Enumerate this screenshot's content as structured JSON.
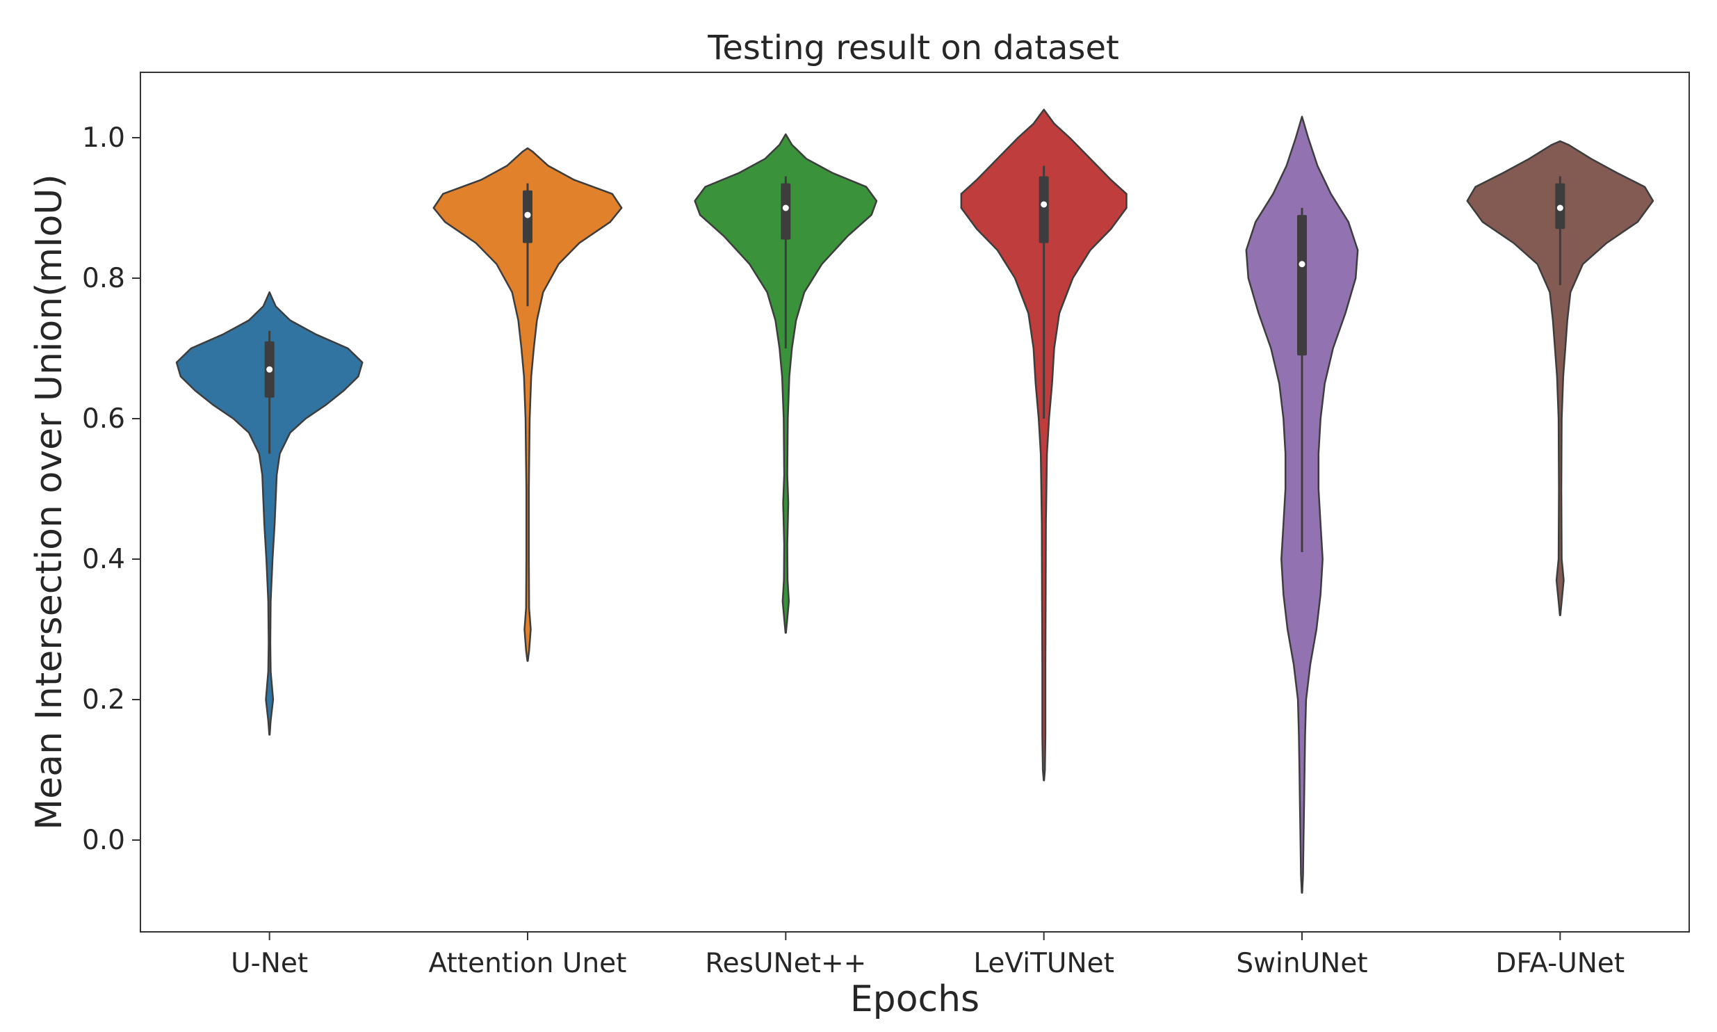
{
  "chart_data": {
    "type": "violin",
    "title": "Testing result on dataset",
    "xlabel": "Epochs",
    "ylabel": "Mean Intersection over Union(mIoU)",
    "ylim": [
      -0.13,
      1.1
    ],
    "yticks": [
      "0.0",
      "0.2",
      "0.4",
      "0.6",
      "0.8",
      "1.0"
    ],
    "ytick_values": [
      0.0,
      0.2,
      0.4,
      0.6,
      0.8,
      1.0
    ],
    "grid": false,
    "categories": [
      "U-Net",
      "Attention Unet",
      "ResUNet++",
      "LeViTUNet",
      "SwinUNet",
      "DFA-UNet"
    ],
    "colors": [
      "#3274a1",
      "#e1812c",
      "#3a923a",
      "#c03d3e",
      "#9372b2",
      "#845b53"
    ],
    "violins": [
      {
        "name": "U-Net",
        "min": 0.15,
        "q1": 0.63,
        "median": 0.67,
        "q3": 0.71,
        "max": 0.78,
        "whisker_low": 0.55,
        "whisker_high": 0.725,
        "profile": [
          [
            0.15,
            0.002
          ],
          [
            0.17,
            0.012
          ],
          [
            0.2,
            0.035
          ],
          [
            0.24,
            0.012
          ],
          [
            0.28,
            0.008
          ],
          [
            0.34,
            0.012
          ],
          [
            0.4,
            0.03
          ],
          [
            0.45,
            0.05
          ],
          [
            0.52,
            0.07
          ],
          [
            0.55,
            0.1
          ],
          [
            0.58,
            0.2
          ],
          [
            0.6,
            0.35
          ],
          [
            0.62,
            0.55
          ],
          [
            0.64,
            0.72
          ],
          [
            0.66,
            0.86
          ],
          [
            0.68,
            0.9
          ],
          [
            0.7,
            0.76
          ],
          [
            0.72,
            0.45
          ],
          [
            0.74,
            0.2
          ],
          [
            0.76,
            0.06
          ],
          [
            0.78,
            0.0
          ]
        ]
      },
      {
        "name": "Attention Unet",
        "min": 0.255,
        "q1": 0.85,
        "median": 0.89,
        "q3": 0.925,
        "max": 0.985,
        "whisker_low": 0.76,
        "whisker_high": 0.935,
        "profile": [
          [
            0.255,
            0.002
          ],
          [
            0.27,
            0.015
          ],
          [
            0.3,
            0.03
          ],
          [
            0.33,
            0.015
          ],
          [
            0.4,
            0.012
          ],
          [
            0.5,
            0.012
          ],
          [
            0.6,
            0.02
          ],
          [
            0.66,
            0.035
          ],
          [
            0.7,
            0.06
          ],
          [
            0.74,
            0.09
          ],
          [
            0.78,
            0.15
          ],
          [
            0.82,
            0.3
          ],
          [
            0.85,
            0.5
          ],
          [
            0.88,
            0.8
          ],
          [
            0.9,
            0.91
          ],
          [
            0.92,
            0.82
          ],
          [
            0.94,
            0.45
          ],
          [
            0.96,
            0.2
          ],
          [
            0.98,
            0.05
          ],
          [
            0.985,
            0.0
          ]
        ]
      },
      {
        "name": "ResUNet++",
        "min": 0.295,
        "q1": 0.855,
        "median": 0.9,
        "q3": 0.935,
        "max": 1.005,
        "whisker_low": 0.7,
        "whisker_high": 0.945,
        "profile": [
          [
            0.295,
            0.002
          ],
          [
            0.31,
            0.012
          ],
          [
            0.34,
            0.03
          ],
          [
            0.37,
            0.018
          ],
          [
            0.42,
            0.015
          ],
          [
            0.48,
            0.025
          ],
          [
            0.52,
            0.015
          ],
          [
            0.6,
            0.02
          ],
          [
            0.66,
            0.035
          ],
          [
            0.7,
            0.06
          ],
          [
            0.74,
            0.1
          ],
          [
            0.78,
            0.18
          ],
          [
            0.82,
            0.35
          ],
          [
            0.86,
            0.6
          ],
          [
            0.89,
            0.83
          ],
          [
            0.91,
            0.88
          ],
          [
            0.93,
            0.78
          ],
          [
            0.95,
            0.45
          ],
          [
            0.97,
            0.2
          ],
          [
            0.99,
            0.06
          ],
          [
            1.005,
            0.0
          ]
        ]
      },
      {
        "name": "LeViTUNet",
        "min": 0.085,
        "q1": 0.85,
        "median": 0.905,
        "q3": 0.945,
        "max": 1.04,
        "whisker_low": 0.6,
        "whisker_high": 0.96,
        "profile": [
          [
            0.085,
            0.002
          ],
          [
            0.1,
            0.01
          ],
          [
            0.15,
            0.015
          ],
          [
            0.25,
            0.015
          ],
          [
            0.35,
            0.018
          ],
          [
            0.45,
            0.02
          ],
          [
            0.55,
            0.03
          ],
          [
            0.6,
            0.05
          ],
          [
            0.65,
            0.08
          ],
          [
            0.7,
            0.1
          ],
          [
            0.75,
            0.15
          ],
          [
            0.8,
            0.28
          ],
          [
            0.84,
            0.45
          ],
          [
            0.87,
            0.65
          ],
          [
            0.9,
            0.8
          ],
          [
            0.92,
            0.8
          ],
          [
            0.94,
            0.65
          ],
          [
            0.97,
            0.45
          ],
          [
            1.0,
            0.25
          ],
          [
            1.02,
            0.1
          ],
          [
            1.04,
            0.0
          ]
        ]
      },
      {
        "name": "SwinUNet",
        "min": -0.075,
        "q1": 0.69,
        "median": 0.82,
        "q3": 0.89,
        "max": 1.03,
        "whisker_low": 0.41,
        "whisker_high": 0.9,
        "profile": [
          [
            -0.075,
            0.002
          ],
          [
            -0.05,
            0.01
          ],
          [
            0.0,
            0.015
          ],
          [
            0.05,
            0.02
          ],
          [
            0.1,
            0.025
          ],
          [
            0.15,
            0.03
          ],
          [
            0.2,
            0.04
          ],
          [
            0.25,
            0.08
          ],
          [
            0.3,
            0.14
          ],
          [
            0.35,
            0.18
          ],
          [
            0.4,
            0.2
          ],
          [
            0.45,
            0.18
          ],
          [
            0.5,
            0.16
          ],
          [
            0.55,
            0.16
          ],
          [
            0.6,
            0.18
          ],
          [
            0.65,
            0.22
          ],
          [
            0.7,
            0.3
          ],
          [
            0.75,
            0.42
          ],
          [
            0.8,
            0.52
          ],
          [
            0.84,
            0.54
          ],
          [
            0.88,
            0.45
          ],
          [
            0.92,
            0.28
          ],
          [
            0.96,
            0.15
          ],
          [
            1.0,
            0.06
          ],
          [
            1.03,
            0.0
          ]
        ]
      },
      {
        "name": "DFA-UNet",
        "min": 0.32,
        "q1": 0.87,
        "median": 0.9,
        "q3": 0.935,
        "max": 0.995,
        "whisker_low": 0.79,
        "whisker_high": 0.945,
        "profile": [
          [
            0.32,
            0.002
          ],
          [
            0.34,
            0.015
          ],
          [
            0.37,
            0.035
          ],
          [
            0.4,
            0.015
          ],
          [
            0.5,
            0.012
          ],
          [
            0.6,
            0.015
          ],
          [
            0.66,
            0.03
          ],
          [
            0.7,
            0.05
          ],
          [
            0.74,
            0.07
          ],
          [
            0.78,
            0.1
          ],
          [
            0.82,
            0.22
          ],
          [
            0.85,
            0.45
          ],
          [
            0.88,
            0.75
          ],
          [
            0.91,
            0.9
          ],
          [
            0.93,
            0.82
          ],
          [
            0.95,
            0.55
          ],
          [
            0.97,
            0.3
          ],
          [
            0.99,
            0.08
          ],
          [
            0.995,
            0.0
          ]
        ]
      }
    ]
  }
}
